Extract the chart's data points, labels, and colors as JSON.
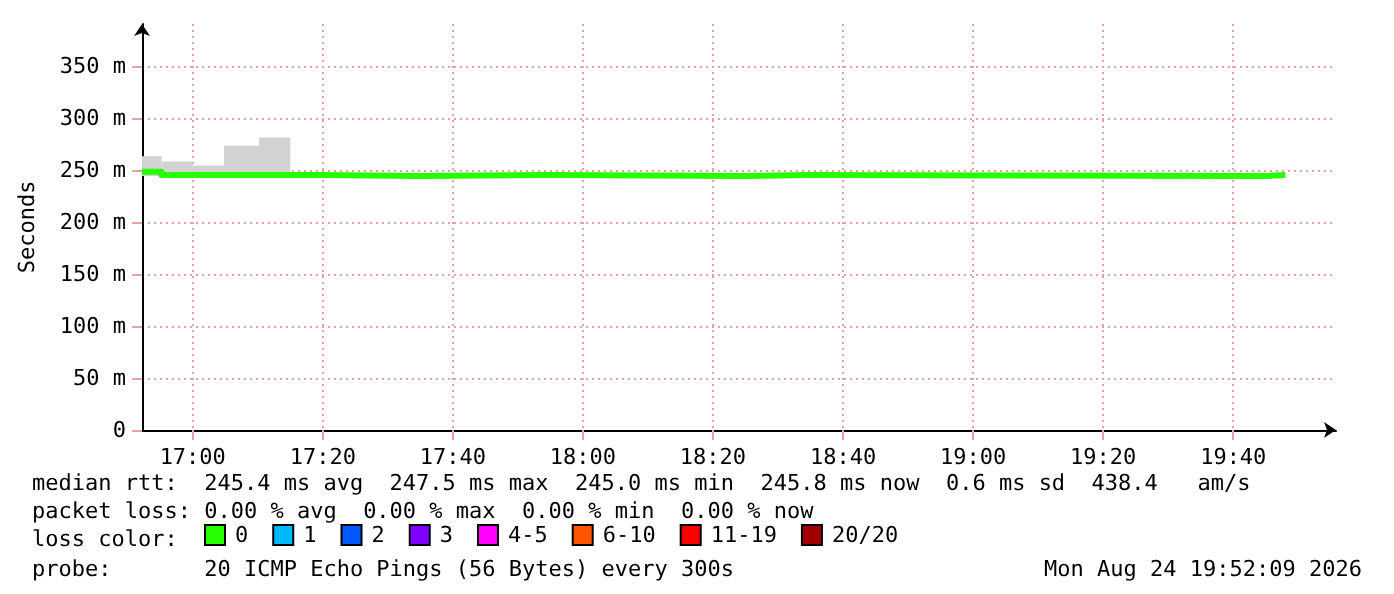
{
  "chart_data": {
    "type": "step",
    "ylabel": "Seconds",
    "x": [
      16.87,
      16.92,
      17.0,
      17.08,
      17.17,
      17.25,
      17.33,
      17.58,
      17.92,
      18.42,
      18.58,
      19.75,
      19.8
    ],
    "series": [
      {
        "name": "0",
        "color": "#26ff00",
        "values": [
          248,
          245,
          245,
          245,
          245,
          245,
          244,
          245,
          244,
          245,
          244,
          245,
          245
        ],
        "lower": [
          244,
          243,
          243,
          243,
          243,
          244,
          243,
          244,
          243,
          244,
          243,
          244,
          244
        ],
        "upper": [
          263,
          258,
          254,
          273,
          281,
          246,
          245,
          246,
          245,
          246,
          245,
          246,
          246
        ]
      },
      {
        "name": "1",
        "color": "#00b8ff",
        "values": [
          null,
          null,
          null,
          null,
          null,
          null,
          null,
          null,
          null,
          null,
          null,
          null,
          null
        ]
      },
      {
        "name": "2",
        "color": "#0059ff",
        "values": [
          null,
          null,
          null,
          null,
          null,
          null,
          null,
          null,
          null,
          null,
          null,
          null,
          null
        ]
      },
      {
        "name": "3",
        "color": "#7e00ff",
        "values": [
          null,
          null,
          null,
          null,
          null,
          null,
          null,
          null,
          null,
          null,
          null,
          null,
          null
        ]
      },
      {
        "name": "4-5",
        "color": "#ff00ff",
        "values": [
          null,
          null,
          null,
          null,
          null,
          null,
          null,
          null,
          null,
          null,
          null,
          null,
          null
        ]
      },
      {
        "name": "6-10",
        "color": "#ff5500",
        "values": [
          null,
          null,
          null,
          null,
          null,
          null,
          null,
          null,
          null,
          null,
          null,
          null,
          null
        ]
      },
      {
        "name": "11-19",
        "color": "#ff0000",
        "values": [
          null,
          null,
          null,
          null,
          null,
          null,
          null,
          null,
          null,
          null,
          null,
          null,
          null
        ]
      },
      {
        "name": "20/20",
        "color": "#a10000",
        "values": [
          null,
          null,
          null,
          null,
          null,
          null,
          null,
          null,
          null,
          null,
          null,
          null,
          null
        ]
      }
    ],
    "legend_title": "loss color:",
    "legend": "bottom",
    "xlim": [
      16.87,
      19.93
    ],
    "xticks": [
      {
        "value": 17.0,
        "label": "17:00"
      },
      {
        "value": 17.3333,
        "label": "17:20"
      },
      {
        "value": 17.6667,
        "label": "17:40"
      },
      {
        "value": 18.0,
        "label": "18:00"
      },
      {
        "value": 18.3333,
        "label": "18:20"
      },
      {
        "value": 18.6667,
        "label": "18:40"
      },
      {
        "value": 19.0,
        "label": "19:00"
      },
      {
        "value": 19.3333,
        "label": "19:20"
      },
      {
        "value": 19.6667,
        "label": "19:40"
      }
    ],
    "ylim": [
      0,
      390
    ],
    "yticks": [
      0,
      {
        "value": 50,
        "label": "50 m"
      },
      {
        "value": 100,
        "label": "100 m"
      },
      {
        "value": 150,
        "label": "150 m"
      },
      {
        "value": 200,
        "label": "200 m"
      },
      {
        "value": 250,
        "label": "250 m"
      },
      {
        "value": 300,
        "label": "300 m"
      },
      {
        "value": 350,
        "label": "350 m"
      }
    ],
    "grid": true,
    "annotations": [
      "median rtt:  245.4 ms avg  247.5 ms max  245.0 ms min  245.8 ms now  0.6 ms sd  438.4   am/s",
      "packet loss: 0.00 % avg  0.00 % max  0.00 % min  0.00 % now",
      "probe:       20 ICMP Echo Pings (56 Bytes) every 300s",
      "Mon Aug 24 19:52:09 2026"
    ]
  }
}
